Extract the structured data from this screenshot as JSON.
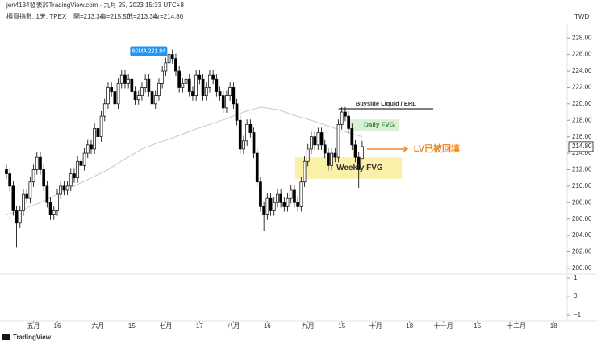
{
  "header": {
    "author": "jen4134發表於TradingView.com · 九月 25, 2023 15:33 UTC+8",
    "symbol": "櫃買指數, 1天, TPEX",
    "ohlc_text": [
      "開=213.34",
      "高=215.50",
      "低=213.34",
      "收=214.80"
    ],
    "currency": "TWD"
  },
  "footer": {
    "brand": "TradingView"
  },
  "chart_data": {
    "type": "candlestick",
    "ohlc": {
      "open": [
        212,
        211.5,
        210,
        207,
        205.5,
        207,
        209,
        208.5,
        210.5,
        212,
        213.5,
        212,
        210,
        208,
        206.5,
        207,
        209,
        210,
        209.5,
        210,
        211.5,
        211,
        213,
        212.5,
        214,
        215,
        214.5,
        217,
        216,
        218.5,
        220,
        222,
        221.5,
        220,
        222.5,
        223.5,
        222.5,
        223,
        221.5,
        220.5,
        221,
        222,
        223,
        221.5,
        220,
        221,
        222.5,
        224,
        225,
        226,
        225.5,
        224,
        222,
        222.5,
        223,
        221.5,
        221,
        223.5,
        223,
        221,
        222,
        223.5,
        223,
        221.5,
        221,
        219.5,
        221,
        222,
        220,
        218,
        214.5,
        215.5,
        217.5,
        216.5,
        214,
        210.5,
        207.5,
        206.5,
        208.5,
        207,
        208,
        209,
        208,
        207.5,
        208.5,
        209.5,
        208,
        207.5,
        210.5,
        213,
        214.5,
        216,
        215,
        216.5,
        215,
        214,
        212.5,
        214,
        213.5,
        217.5,
        219,
        218.5,
        217,
        215,
        213.5,
        213.34
      ],
      "high": [
        212.6,
        212.1,
        210.6,
        207.6,
        207.6,
        209.6,
        209.6,
        211.1,
        212.6,
        214.1,
        214.1,
        212.6,
        210.6,
        208.6,
        207.6,
        209.6,
        210.6,
        210.6,
        210.6,
        212.1,
        212.1,
        213.6,
        213.6,
        214.6,
        215.6,
        215.6,
        217.6,
        217.6,
        219.1,
        220.6,
        222.6,
        222.6,
        222.1,
        223.1,
        224.1,
        224.1,
        223.6,
        223.6,
        222.1,
        221.6,
        222.6,
        223.6,
        223.6,
        222.1,
        221.6,
        223.1,
        224.6,
        225.6,
        227.2,
        226.6,
        226.1,
        224.6,
        223.1,
        223.6,
        223.6,
        222.1,
        224.1,
        224.1,
        223.6,
        222.6,
        224.1,
        224.1,
        223.6,
        222.1,
        221.6,
        221.6,
        222.6,
        222.6,
        220.6,
        218.6,
        216.1,
        218.1,
        218.1,
        217.1,
        214.6,
        211.1,
        208.1,
        209.1,
        209.1,
        208.6,
        209.6,
        209.6,
        208.6,
        209.1,
        210.1,
        210.1,
        208.6,
        211.1,
        213.6,
        215.1,
        216.6,
        216.6,
        217.1,
        217.1,
        215.6,
        214.6,
        214.6,
        214.6,
        218.1,
        219.6,
        219.6,
        219.1,
        217.6,
        215.6,
        214.1,
        215.5
      ],
      "low": [
        210.9,
        209.4,
        206.4,
        202.5,
        204.9,
        206.4,
        207.9,
        207.9,
        209.9,
        211.4,
        211.4,
        209.4,
        207.4,
        205.9,
        205.9,
        206.4,
        208.4,
        208.9,
        208.9,
        209.4,
        210.4,
        210.4,
        211.9,
        211.9,
        213.4,
        213.9,
        213.9,
        215.4,
        215.4,
        217.9,
        219.4,
        220.9,
        219.4,
        219.4,
        221.9,
        221.9,
        221.9,
        220.9,
        219.9,
        219.9,
        220.4,
        221.4,
        220.9,
        219.4,
        219.4,
        220.4,
        221.9,
        223.4,
        224.4,
        224.9,
        223.4,
        221.4,
        221.4,
        221.9,
        220.9,
        220.4,
        220.4,
        222.4,
        220.4,
        220.4,
        221.4,
        222.4,
        220.9,
        220.4,
        218.9,
        218.9,
        220.4,
        219.4,
        217.4,
        213.9,
        213.9,
        214.9,
        215.9,
        213.4,
        209.9,
        206.9,
        204.5,
        205.9,
        206.4,
        206.4,
        207.4,
        207.4,
        206.9,
        206.9,
        207.9,
        207.4,
        206.9,
        206.9,
        209.9,
        212.4,
        213.9,
        214.4,
        214.4,
        214.4,
        213.4,
        211.9,
        211.9,
        212.9,
        212.9,
        216.9,
        217.9,
        216.4,
        214.4,
        212.9,
        209.8,
        213.34
      ],
      "close": [
        211.5,
        210,
        207,
        205.5,
        207,
        209,
        208.5,
        210.5,
        212,
        213.5,
        212,
        210,
        208,
        206.5,
        207,
        209,
        210,
        209.5,
        210,
        211.5,
        211,
        213,
        212.5,
        214,
        215,
        214.5,
        217,
        216,
        218.5,
        220,
        222,
        221.5,
        220,
        222.5,
        223.5,
        222.5,
        223,
        221.5,
        220.5,
        221,
        222,
        223,
        221.5,
        220,
        221,
        222.5,
        224,
        225,
        226,
        225.5,
        224,
        222,
        222.5,
        223,
        221.5,
        221,
        223.5,
        223,
        221,
        222,
        223.5,
        223,
        221.5,
        221,
        219.5,
        221,
        222,
        220,
        218,
        214.5,
        215.5,
        217.5,
        216.5,
        214,
        210.5,
        207.5,
        206.5,
        208.5,
        207,
        208,
        209,
        208,
        207.5,
        208.5,
        209.5,
        208,
        207.5,
        210.5,
        213,
        214.5,
        216,
        215,
        216.5,
        215,
        214,
        212.5,
        214,
        213.5,
        217.5,
        219,
        218.5,
        217,
        215,
        213.5,
        212,
        214.8
      ],
      "up_color": "#ffffff",
      "down_color": "#000000"
    },
    "moving_average": {
      "x": [
        0,
        5,
        10,
        15,
        20,
        25,
        30,
        35,
        40,
        45,
        50,
        55,
        60,
        65,
        70,
        75,
        80,
        85,
        90,
        95,
        100,
        105
      ],
      "values": [
        206.5,
        207.2,
        208,
        209,
        210,
        211,
        212,
        213.3,
        214.5,
        215.3,
        216,
        216.8,
        217.5,
        218.2,
        219,
        219.6,
        219.3,
        218.6,
        218,
        217.3,
        216.6,
        216
      ],
      "color": "#c8c8c8"
    },
    "ma_label": {
      "text": "60MA 221.84",
      "x": 42,
      "y": 226.4
    },
    "last_price_label": "214.80",
    "xlim": [
      -1.9,
      165.5
    ],
    "ylim": [
      199.5,
      229
    ],
    "yticks": [
      {
        "value": 200,
        "label": "200.00"
      },
      {
        "value": 202,
        "label": "202.00"
      },
      {
        "value": 204,
        "label": "204.00"
      },
      {
        "value": 206,
        "label": "206.00"
      },
      {
        "value": 208,
        "label": "208.00"
      },
      {
        "value": 210,
        "label": "210.00"
      },
      {
        "value": 212,
        "label": "212.00"
      },
      {
        "value": 214,
        "label": "214.00"
      },
      {
        "value": 216,
        "label": "216.00"
      },
      {
        "value": 218,
        "label": "218.00"
      },
      {
        "value": 220,
        "label": "220.00"
      },
      {
        "value": 222,
        "label": "222.00"
      },
      {
        "value": 224,
        "label": "224.00"
      },
      {
        "value": 226,
        "label": "226.00"
      },
      {
        "value": 228,
        "label": "228.00"
      }
    ],
    "xticks": [
      {
        "value": 8,
        "label": "五月"
      },
      {
        "value": 15,
        "label": "16"
      },
      {
        "value": 27,
        "label": "六月"
      },
      {
        "value": 37,
        "label": "15"
      },
      {
        "value": 47,
        "label": "七月"
      },
      {
        "value": 57,
        "label": "17"
      },
      {
        "value": 67,
        "label": "八月"
      },
      {
        "value": 77,
        "label": "16"
      },
      {
        "value": 89,
        "label": "九月"
      },
      {
        "value": 99,
        "label": "15"
      },
      {
        "value": 109,
        "label": "十月"
      },
      {
        "value": 119,
        "label": "18"
      },
      {
        "value": 129,
        "label": "十一月"
      },
      {
        "value": 139,
        "label": "15"
      },
      {
        "value": 150.5,
        "label": "十二月"
      },
      {
        "value": 161.5,
        "label": "18"
      }
    ],
    "zones": [
      {
        "label": "Daily FVG",
        "x": [
          101.2,
          116
        ],
        "y": [
          216.7,
          218.1
        ],
        "color": "#d8efd8",
        "text_color": "#3a8a3a"
      },
      {
        "label": "Weekly FVG",
        "x": [
          85.2,
          116.7
        ],
        "y": [
          210.9,
          213.5
        ],
        "color": "#fbf0a8",
        "text_color": "#333333"
      }
    ],
    "level": {
      "label": "Buyside Liquid / ERL",
      "x": [
        98,
        126
      ],
      "y": 219.4
    },
    "arrow": {
      "label": "LV已被回填",
      "x": [
        106.4,
        118.3
      ],
      "y": 214.5,
      "color": "#f08a24"
    },
    "indicator_pane": {
      "ylim": [
        -1.3,
        1.22
      ],
      "yticks": [
        1,
        0,
        {
          "value": -1,
          "label": "−1"
        }
      ]
    }
  }
}
